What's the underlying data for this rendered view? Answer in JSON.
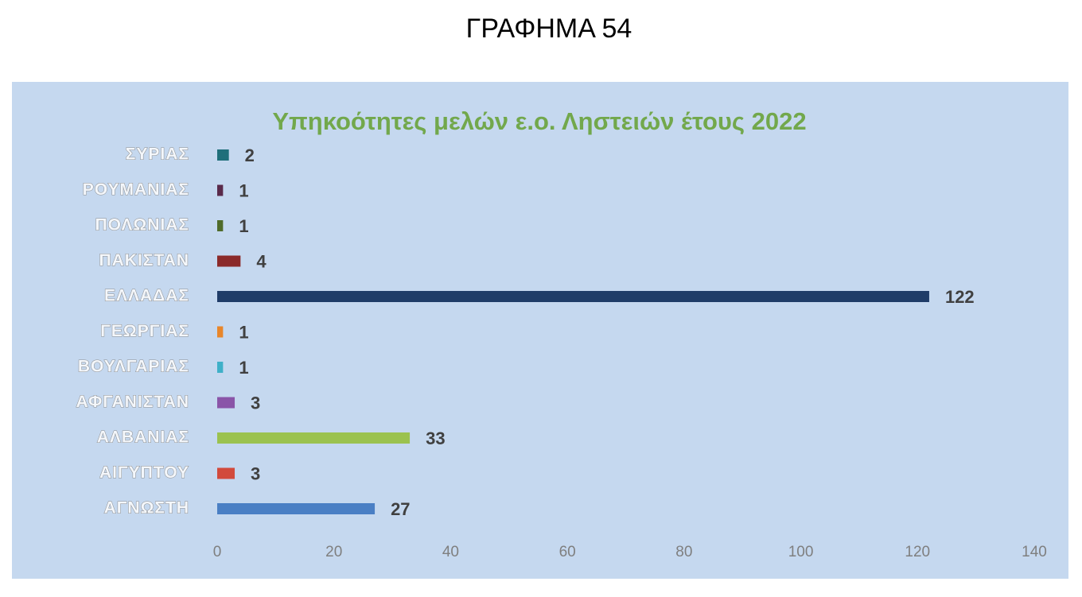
{
  "heading": "ΓΡΑΦΗΜΑ 54",
  "chart_data": {
    "type": "bar",
    "orientation": "horizontal",
    "title": "Υπηκοότητες μελών ε.ο. Ληστειών έτους 2022",
    "categories": [
      "ΣΥΡΙΑΣ",
      "ΡΟΥΜΑΝΙΑΣ",
      "ΠΟΛΩΝΙΑΣ",
      "ΠΑΚΙΣΤΑΝ",
      "ΕΛΛΑΔΑΣ",
      "ΓΕΩΡΓΙΑΣ",
      "ΒΟΥΛΓΑΡΙΑΣ",
      "ΑΦΓΑΝΙΣΤΑΝ",
      "ΑΛΒΑΝΙΑΣ",
      "ΑΙΓΥΠΤΟΥ",
      "ΑΓΝΩΣΤΗ"
    ],
    "values": [
      2,
      1,
      1,
      4,
      122,
      1,
      1,
      3,
      33,
      3,
      27
    ],
    "colors": [
      "#1f6f7a",
      "#5a2a4a",
      "#4f6b2a",
      "#8b2a2a",
      "#1f3c68",
      "#e8862a",
      "#3fb0c8",
      "#8a55a8",
      "#9bc24f",
      "#d24a3c",
      "#4a7fc4"
    ],
    "xlim": [
      0,
      140
    ],
    "xticks": [
      0,
      20,
      40,
      60,
      80,
      100,
      120,
      140
    ],
    "grid": false
  }
}
